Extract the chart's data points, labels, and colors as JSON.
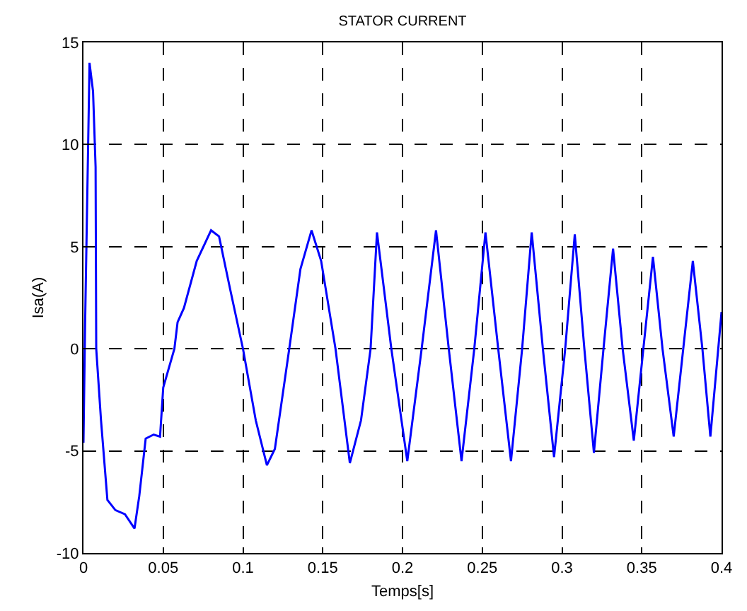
{
  "chart_data": {
    "type": "line",
    "title": "STATOR CURRENT",
    "xlabel": "Temps[s]",
    "ylabel": "Isa(A)",
    "x": [
      0,
      0.001,
      0.0038,
      0.006,
      0.0076,
      0.008,
      0.011,
      0.015,
      0.02,
      0.026,
      0.032,
      0.035,
      0.039,
      0.044,
      0.048,
      0.05,
      0.057,
      0.059,
      0.063,
      0.071,
      0.08,
      0.085,
      0.092,
      0.1,
      0.108,
      0.115,
      0.12,
      0.129,
      0.136,
      0.143,
      0.149,
      0.158,
      0.167,
      0.174,
      0.18,
      0.184,
      0.193,
      0.203,
      0.212,
      0.221,
      0.229,
      0.237,
      0.245,
      0.252,
      0.26,
      0.268,
      0.275,
      0.281,
      0.288,
      0.295,
      0.302,
      0.308,
      0.314,
      0.32,
      0.326,
      0.332,
      0.338,
      0.345,
      0.351,
      0.357,
      0.363,
      0.37,
      0.376,
      0.382,
      0.388,
      0.393,
      0.4
    ],
    "series": [
      {
        "color": "#0000ff",
        "values": [
          -4.6,
          1.1,
          14,
          12.6,
          8.9,
          0,
          -3.5,
          -7.4,
          -7.9,
          -8.1,
          -8.8,
          -7.2,
          -4.4,
          -4.2,
          -4.3,
          -1.9,
          0,
          1.3,
          2,
          4.3,
          5.8,
          5.5,
          2.9,
          0,
          -3.5,
          -5.7,
          -4.9,
          0,
          3.9,
          5.8,
          4.3,
          0,
          -5.6,
          -3.5,
          0,
          5.7,
          0,
          -5.5,
          0,
          5.8,
          0,
          -5.5,
          0,
          5.7,
          0,
          -5.5,
          0,
          5.7,
          0,
          -5.3,
          0,
          5.6,
          0,
          -5.1,
          0,
          4.9,
          0,
          -4.5,
          0,
          4.5,
          0,
          -4.3,
          0,
          4.3,
          0,
          -4.3,
          1.8
        ]
      }
    ],
    "xlim": [
      0,
      0.4
    ],
    "xticks": [
      0,
      0.05,
      0.1,
      0.15,
      0.2,
      0.25,
      0.3,
      0.35,
      0.4
    ],
    "ylim": [
      -10,
      15
    ],
    "yticks": [
      -10,
      -5,
      0,
      5,
      10,
      15
    ],
    "grid": true,
    "legend": false,
    "marker": "none",
    "line_style": "solid"
  }
}
